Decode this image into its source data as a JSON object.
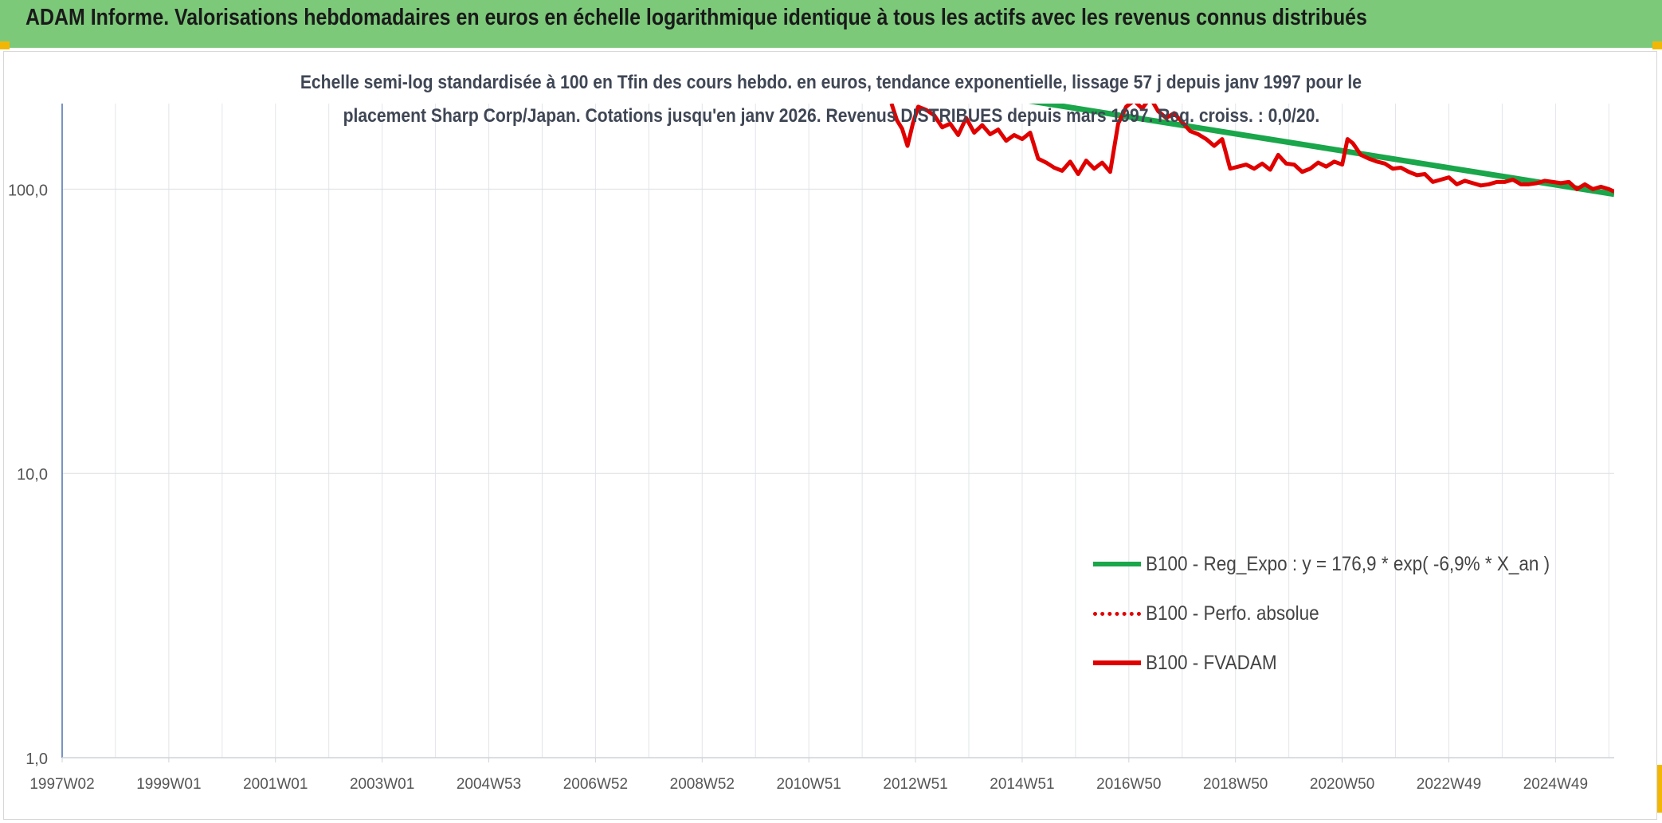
{
  "header": {
    "title": "ADAM Informe. Valorisations hebdomadaires en euros en échelle logarithmique identique à tous les actifs avec les revenus connus distribués"
  },
  "chart_data": {
    "type": "line",
    "title_line1": "Echelle semi-log standardisée à 100 en Tfin des cours hebdo. en euros, tendance exponentielle, lissage 57 j depuis janv 1997 pour le",
    "title_line2": "placement Sharp Corp/Japan. Cotations jusqu'en janv 2026. Revenus DISTRIBUES depuis mars 1997. Reg. croiss. : 0,0/20.",
    "y_scale": "log",
    "ylim": [
      1,
      200
    ],
    "y_ticks": [
      {
        "value": 1,
        "label": "1,0"
      },
      {
        "value": 10,
        "label": "10,0"
      },
      {
        "value": 100,
        "label": "100,0"
      }
    ],
    "x_ticks": [
      {
        "value": 1997.0,
        "label": "1997W02"
      },
      {
        "value": 1999.0,
        "label": "1999W01"
      },
      {
        "value": 2001.0,
        "label": "2001W01"
      },
      {
        "value": 2003.0,
        "label": "2003W01"
      },
      {
        "value": 2005.0,
        "label": "2004W53"
      },
      {
        "value": 2007.0,
        "label": "2006W52"
      },
      {
        "value": 2009.0,
        "label": "2008W52"
      },
      {
        "value": 2011.0,
        "label": "2010W51"
      },
      {
        "value": 2013.0,
        "label": "2012W51"
      },
      {
        "value": 2015.0,
        "label": "2014W51"
      },
      {
        "value": 2017.0,
        "label": "2016W50"
      },
      {
        "value": 2019.0,
        "label": "2018W50"
      },
      {
        "value": 2021.0,
        "label": "2020W50"
      },
      {
        "value": 2023.0,
        "label": "2022W49"
      },
      {
        "value": 2025.0,
        "label": "2024W49"
      }
    ],
    "xlim": [
      1997.0,
      2026.1
    ],
    "grid": true,
    "legend_position": "bottom-right",
    "series": [
      {
        "name": "B100 - Reg_Expo : y = 176,9 * exp( -6,9% *  X_an )",
        "color": "#1aa64a",
        "style": "solid",
        "x": [
          2014.0,
          2026.1
        ],
        "y": [
          221,
          96
        ]
      },
      {
        "name": "B100 - Perfo. absolue",
        "color": "#e00000",
        "style": "dotted",
        "x": [],
        "y": []
      },
      {
        "name": "B100 - FVADAM",
        "color": "#e00000",
        "style": "solid",
        "x": [
          2012.55,
          2012.65,
          2012.75,
          2012.85,
          2012.95,
          2013.05,
          2013.2,
          2013.35,
          2013.5,
          2013.65,
          2013.8,
          2013.95,
          2014.1,
          2014.25,
          2014.4,
          2014.55,
          2014.7,
          2014.85,
          2015.0,
          2015.15,
          2015.3,
          2015.45,
          2015.6,
          2015.75,
          2015.9,
          2016.05,
          2016.2,
          2016.35,
          2016.5,
          2016.65,
          2016.8,
          2016.95,
          2017.1,
          2017.25,
          2017.4,
          2017.55,
          2017.7,
          2017.85,
          2018.0,
          2018.15,
          2018.3,
          2018.45,
          2018.6,
          2018.75,
          2018.9,
          2019.05,
          2019.2,
          2019.35,
          2019.5,
          2019.65,
          2019.8,
          2019.95,
          2020.1,
          2020.25,
          2020.4,
          2020.55,
          2020.7,
          2020.85,
          2021.0,
          2021.1,
          2021.2,
          2021.35,
          2021.5,
          2021.65,
          2021.8,
          2021.95,
          2022.1,
          2022.25,
          2022.4,
          2022.55,
          2022.7,
          2022.85,
          2023.0,
          2023.15,
          2023.3,
          2023.45,
          2023.6,
          2023.75,
          2023.9,
          2024.05,
          2024.2,
          2024.35,
          2024.5,
          2024.65,
          2024.8,
          2024.95,
          2025.1,
          2025.25,
          2025.4,
          2025.55,
          2025.7,
          2025.85,
          2026.0,
          2026.1
        ],
        "y": [
          200,
          175,
          163,
          142,
          170,
          195,
          190,
          182,
          165,
          170,
          155,
          178,
          158,
          168,
          156,
          162,
          148,
          155,
          150,
          158,
          128,
          124,
          119,
          116,
          125,
          113,
          126,
          118,
          124,
          115,
          170,
          195,
          205,
          192,
          210,
          188,
          178,
          185,
          172,
          160,
          156,
          150,
          142,
          150,
          118,
          120,
          122,
          118,
          123,
          117,
          132,
          123,
          122,
          115,
          118,
          124,
          120,
          125,
          122,
          150,
          145,
          132,
          128,
          125,
          123,
          118,
          119,
          115,
          112,
          113,
          106,
          108,
          110,
          104,
          107,
          105,
          103,
          104,
          106,
          106,
          108,
          104,
          104,
          105,
          107,
          106,
          105,
          106,
          100,
          104,
          100,
          102,
          100,
          98
        ]
      }
    ]
  }
}
